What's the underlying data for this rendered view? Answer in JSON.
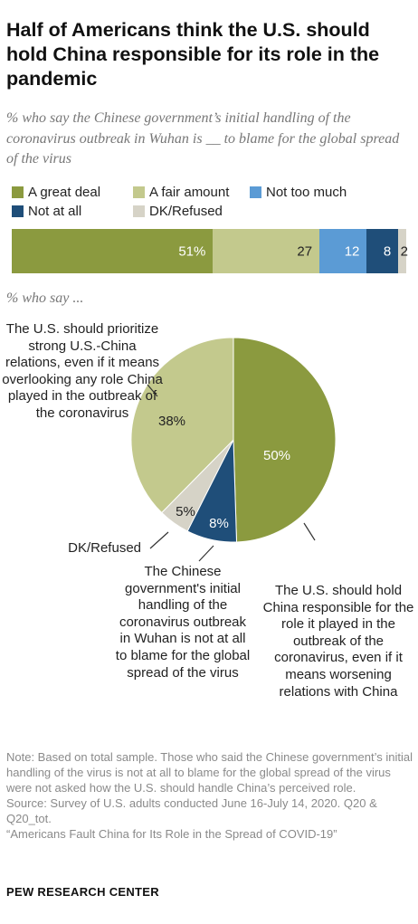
{
  "title": "Half of Americans think the U.S. should hold China responsible for its role in the pandemic",
  "subtitle": "% who say the Chinese government’s initial handling of the coronavirus outbreak in Wuhan is __ to blame for the global spread of the virus",
  "chart_data": [
    {
      "type": "bar",
      "orientation": "horizontal-stacked",
      "categories": [
        "A great deal",
        "A fair amount",
        "Not too much",
        "Not at all",
        "DK/Refused"
      ],
      "values": [
        51,
        27,
        12,
        8,
        2
      ],
      "data_labels": [
        "51%",
        "27",
        "12",
        "8",
        "2"
      ],
      "colors": [
        "#8b9a3f",
        "#c3c98d",
        "#5b9bd5",
        "#1f4e79",
        "#d6d3c7"
      ],
      "legend": [
        "A great deal",
        "A fair amount",
        "Not too much",
        "Not at all",
        "DK/Refused"
      ],
      "legend_placement": "top"
    },
    {
      "type": "pie",
      "subtitle": "% who say ...",
      "slices": [
        {
          "label": "The U.S. should hold China responsible for the role it played in the outbreak of the coronavirus, even if it means worsening relations with China",
          "value": 50,
          "data_label": "50%",
          "color": "#8b9a3f"
        },
        {
          "label": "The Chinese government's initial handling of the coronavirus outbreak in Wuhan is not at all to blame for the global spread of the virus",
          "value": 8,
          "data_label": "8%",
          "color": "#1f4e79"
        },
        {
          "label": "DK/Refused",
          "value": 5,
          "data_label": "5%",
          "color": "#d6d3c7"
        },
        {
          "label": "The U.S. should prioritize strong U.S.-China relations, even if it means overlooking any role China played in the outbreak of the coronavirus",
          "value": 38,
          "data_label": "38%",
          "color": "#c3c98d"
        }
      ]
    }
  ],
  "notes": [
    "Note: Based on total sample. Those who said the Chinese government’s initial handling of the virus is not at all to blame for the global spread of the virus were not asked how the U.S. should handle China’s perceived role.",
    "Source: Survey of U.S. adults conducted June 16-July 14, 2020. Q20 & Q20_tot.",
    "“Americans Fault China for Its Role in the Spread of COVID-19”"
  ],
  "brand": "PEW RESEARCH CENTER"
}
